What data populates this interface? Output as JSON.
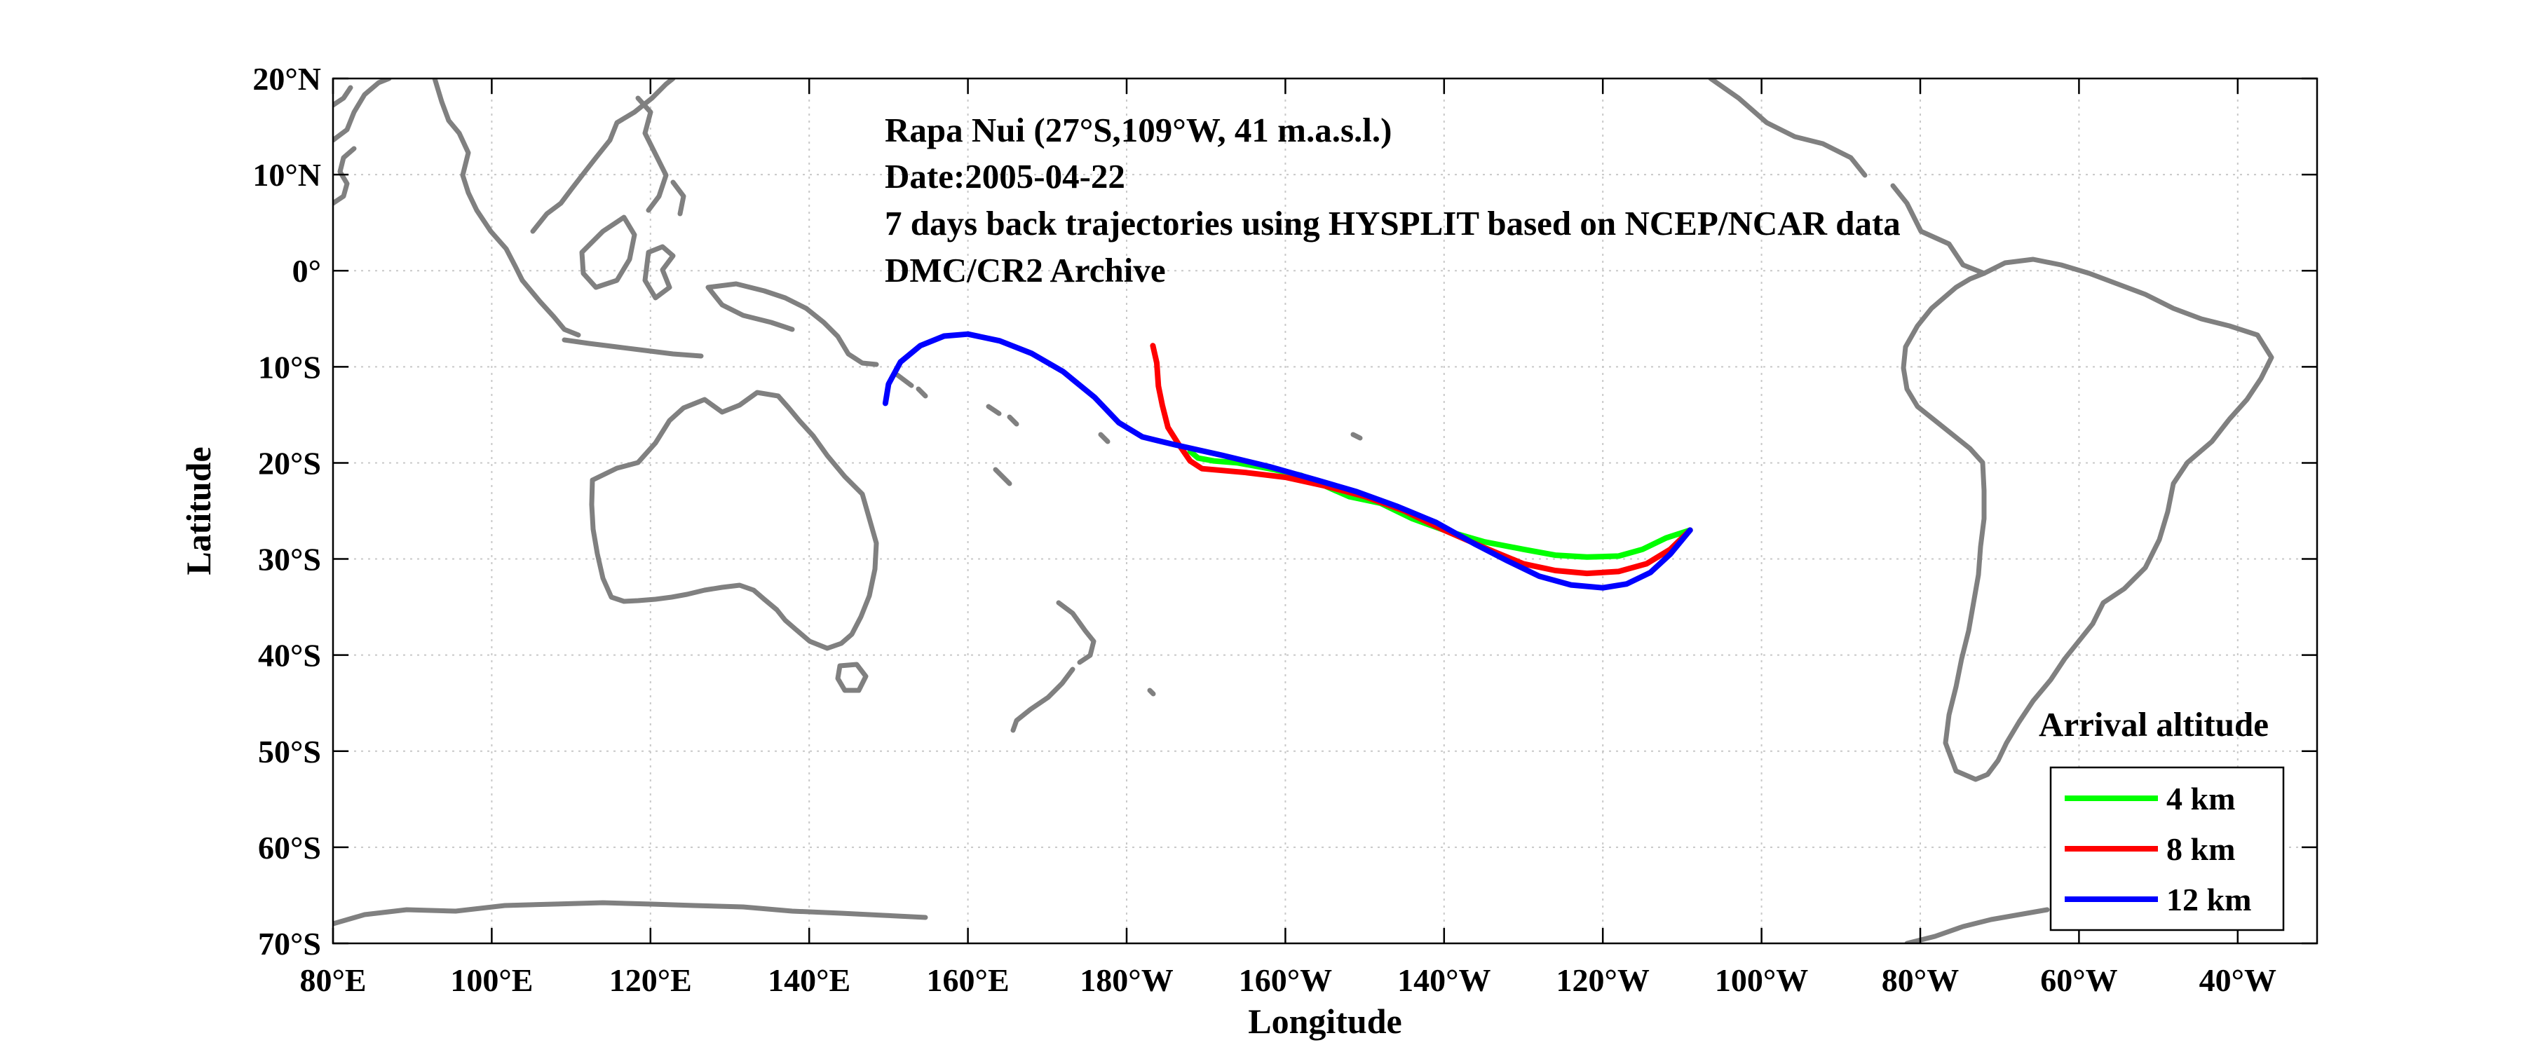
{
  "chart_data": {
    "type": "line",
    "annotations": [
      "Rapa Nui (27°S,109°W, 41 m.a.s.l.)",
      "Date:2005-04-22",
      "7 days back trajectories using HYSPLIT based on NCEP/NCAR data",
      "DMC/CR2 Archive"
    ],
    "xlabel": "Longitude",
    "ylabel": "Latitude",
    "xlim": [
      80,
      330
    ],
    "ylim": [
      -70,
      20
    ],
    "x_ticks": [
      80,
      100,
      120,
      140,
      160,
      180,
      200,
      220,
      240,
      260,
      280,
      300,
      320
    ],
    "x_tick_labels": [
      "80°E",
      "100°E",
      "120°E",
      "140°E",
      "160°E",
      "180°W",
      "160°W",
      "140°W",
      "120°W",
      "100°W",
      "80°W",
      "60°W",
      "40°W"
    ],
    "y_ticks": [
      20,
      10,
      0,
      -10,
      -20,
      -30,
      -40,
      -50,
      -60,
      -70
    ],
    "y_tick_labels": [
      "20°N",
      "10°N",
      "0°",
      "10°S",
      "20°S",
      "30°S",
      "40°S",
      "50°S",
      "60°S",
      "70°S"
    ],
    "grid": true,
    "legend": {
      "title": "Arrival altitude",
      "position": "bottom-right",
      "entries": [
        "4 km",
        "8 km",
        "12 km"
      ]
    },
    "colors": {
      "coastline": "#808080",
      "grid": "#c8c8c8",
      "series": [
        "#00ff00",
        "#ff0000",
        "#0000ff"
      ]
    },
    "series": [
      {
        "name": "4 km",
        "points": [
          [
            251,
            -27
          ],
          [
            248,
            -27.8
          ],
          [
            245,
            -29
          ],
          [
            242,
            -29.7
          ],
          [
            238,
            -29.8
          ],
          [
            234,
            -29.6
          ],
          [
            230,
            -29
          ],
          [
            225,
            -28.2
          ],
          [
            220,
            -27
          ],
          [
            216,
            -25.8
          ],
          [
            212,
            -24.2
          ],
          [
            208,
            -23.5
          ],
          [
            205,
            -22.4
          ],
          [
            202,
            -21.3
          ],
          [
            198,
            -20.6
          ],
          [
            194,
            -20
          ],
          [
            191,
            -19.8
          ],
          [
            189,
            -19.5
          ],
          [
            188,
            -18.8
          ]
        ]
      },
      {
        "name": "8 km",
        "points": [
          [
            251,
            -27
          ],
          [
            248.5,
            -29
          ],
          [
            245.5,
            -30.5
          ],
          [
            242,
            -31.3
          ],
          [
            238,
            -31.5
          ],
          [
            234,
            -31.2
          ],
          [
            230,
            -30.5
          ],
          [
            225,
            -28.8
          ],
          [
            220,
            -27
          ],
          [
            215,
            -25
          ],
          [
            210,
            -23.5
          ],
          [
            205,
            -22.4
          ],
          [
            200,
            -21.5
          ],
          [
            195,
            -21
          ],
          [
            189.5,
            -20.6
          ],
          [
            188,
            -19.8
          ],
          [
            186.5,
            -18
          ],
          [
            185.2,
            -16.3
          ],
          [
            184.5,
            -14
          ],
          [
            184,
            -12
          ],
          [
            183.8,
            -9.6
          ],
          [
            183.3,
            -7.8
          ]
        ]
      },
      {
        "name": "12 km",
        "points": [
          [
            251,
            -27
          ],
          [
            248.5,
            -29.5
          ],
          [
            246,
            -31.4
          ],
          [
            243,
            -32.6
          ],
          [
            240,
            -33
          ],
          [
            236,
            -32.7
          ],
          [
            232,
            -31.8
          ],
          [
            228,
            -30.2
          ],
          [
            224,
            -28.5
          ],
          [
            219,
            -26.2
          ],
          [
            214,
            -24.5
          ],
          [
            209,
            -23
          ],
          [
            204,
            -21.8
          ],
          [
            198,
            -20.4
          ],
          [
            192,
            -19.2
          ],
          [
            186,
            -18.1
          ],
          [
            182,
            -17.3
          ],
          [
            179,
            -15.8
          ],
          [
            176,
            -13.2
          ],
          [
            172,
            -10.5
          ],
          [
            168,
            -8.6
          ],
          [
            164,
            -7.3
          ],
          [
            160,
            -6.6
          ],
          [
            157,
            -6.8
          ],
          [
            154,
            -7.8
          ],
          [
            151.5,
            -9.5
          ],
          [
            150,
            -11.8
          ],
          [
            149.6,
            -13.8
          ]
        ]
      }
    ]
  }
}
